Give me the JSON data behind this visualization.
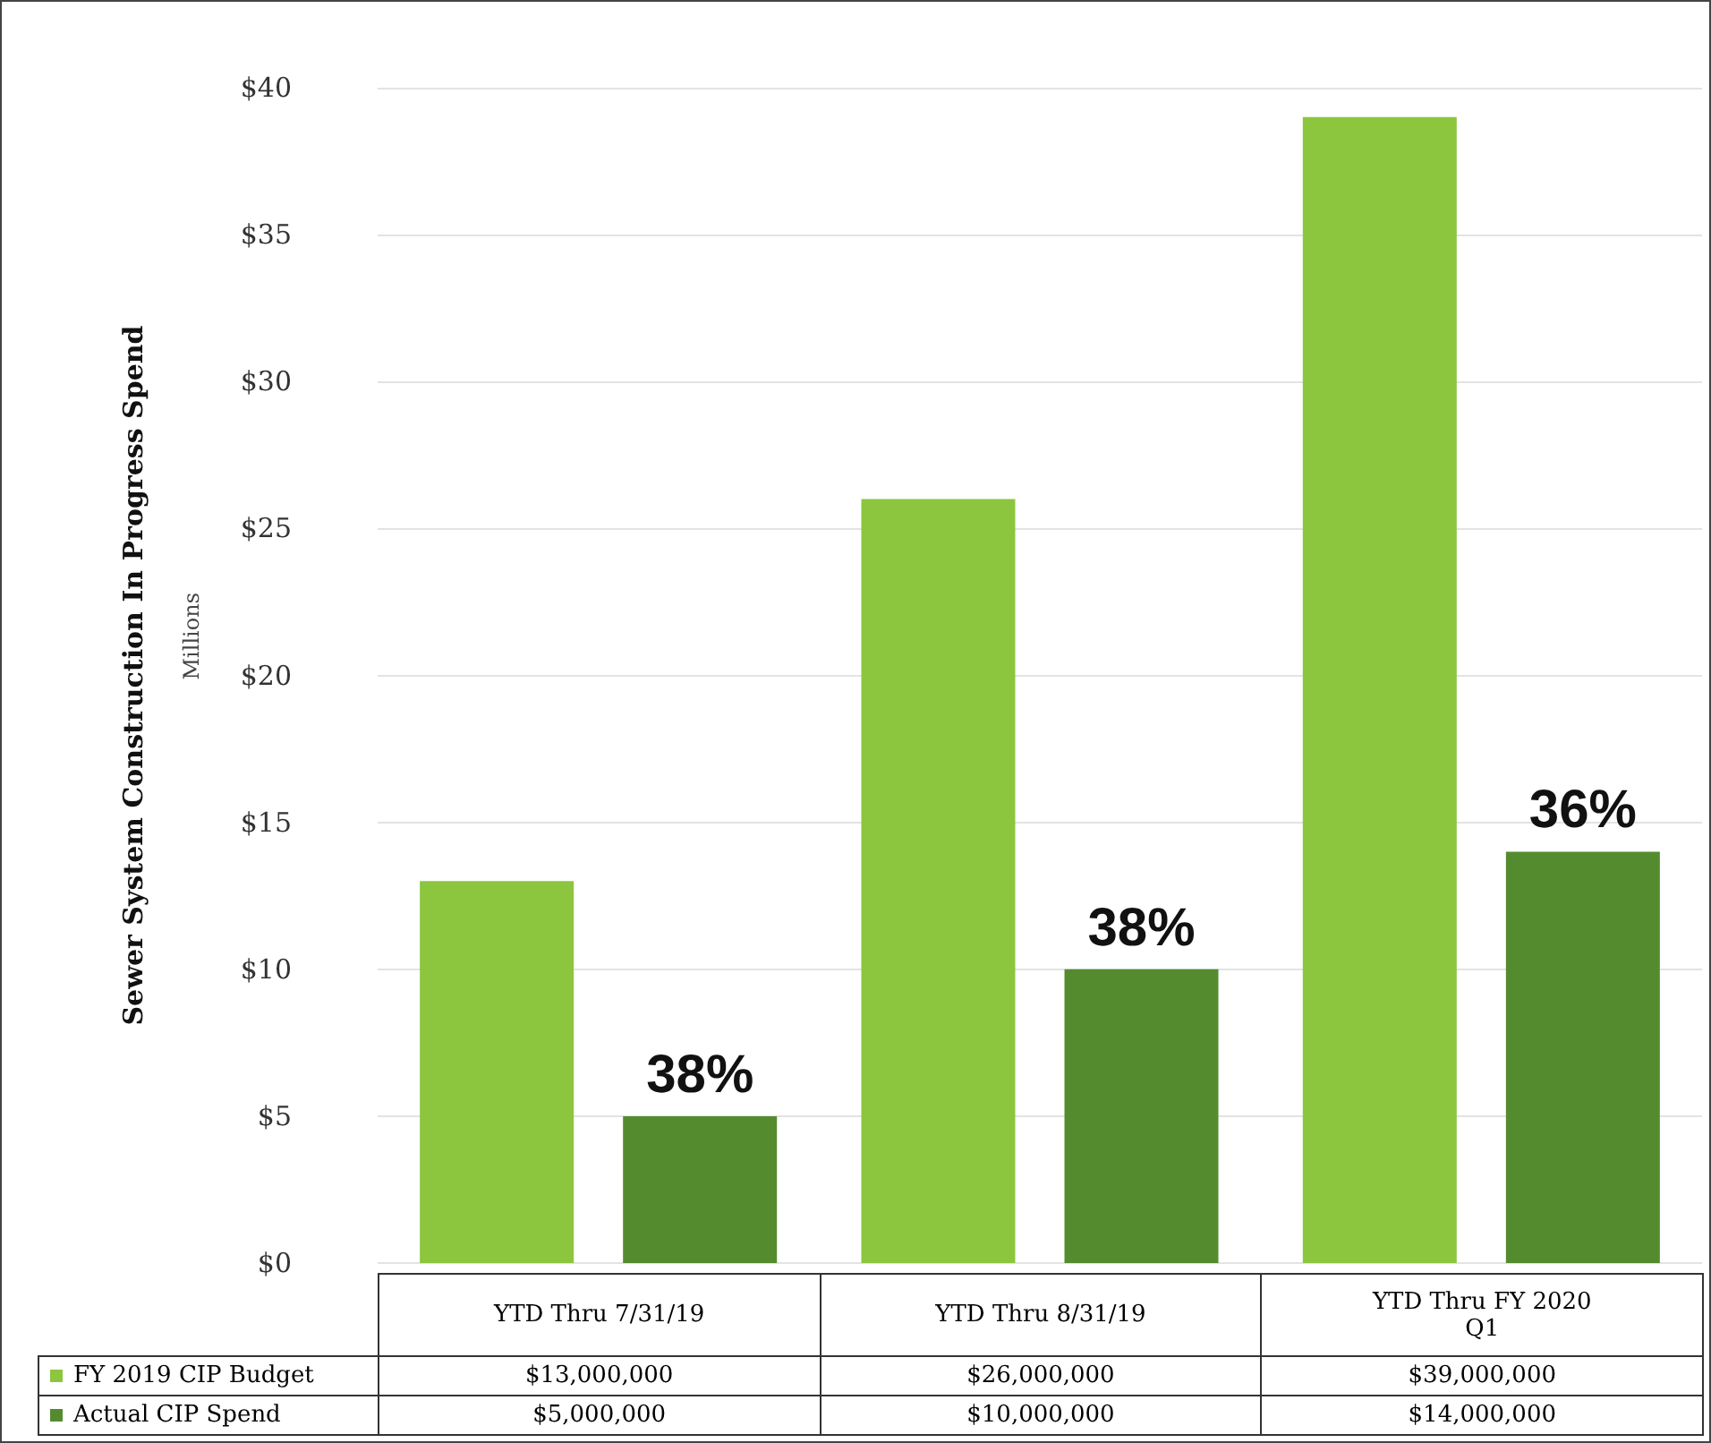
{
  "chart_data": {
    "type": "bar",
    "ylabel": "Sewer System Construction In Progress Spend",
    "categories": [
      "YTD Thru 7/31/19",
      "YTD Thru 8/31/19",
      "YTD Thru FY 2020 Q1"
    ],
    "series": [
      {
        "name": "FY 2019 CIP Budget",
        "color": "#8cc63e",
        "values": [
          13,
          26,
          39
        ]
      },
      {
        "name": "Actual CIP Spend",
        "color": "#558b2f",
        "values": [
          5,
          10,
          14
        ]
      }
    ],
    "ylim": [
      0,
      40
    ],
    "yticks": [
      {
        "value": 0,
        "label": "$0"
      },
      {
        "value": 5,
        "label": "$5"
      },
      {
        "value": 10,
        "label": "$10"
      },
      {
        "value": 15,
        "label": "$15"
      },
      {
        "value": 20,
        "label": "$20"
      },
      {
        "value": 25,
        "label": "$25"
      },
      {
        "value": 30,
        "label": "$30"
      },
      {
        "value": 35,
        "label": "$35"
      },
      {
        "value": 40,
        "label": "$40"
      }
    ],
    "grid": "y",
    "legend": "bottom left",
    "annotations": [
      "Millions",
      "38%",
      "38%",
      "36%",
      "$13,000,000",
      "$26,000,000",
      "$39,000,000",
      "$5,000,000",
      "$10,000,000",
      "$14,000,000"
    ]
  }
}
